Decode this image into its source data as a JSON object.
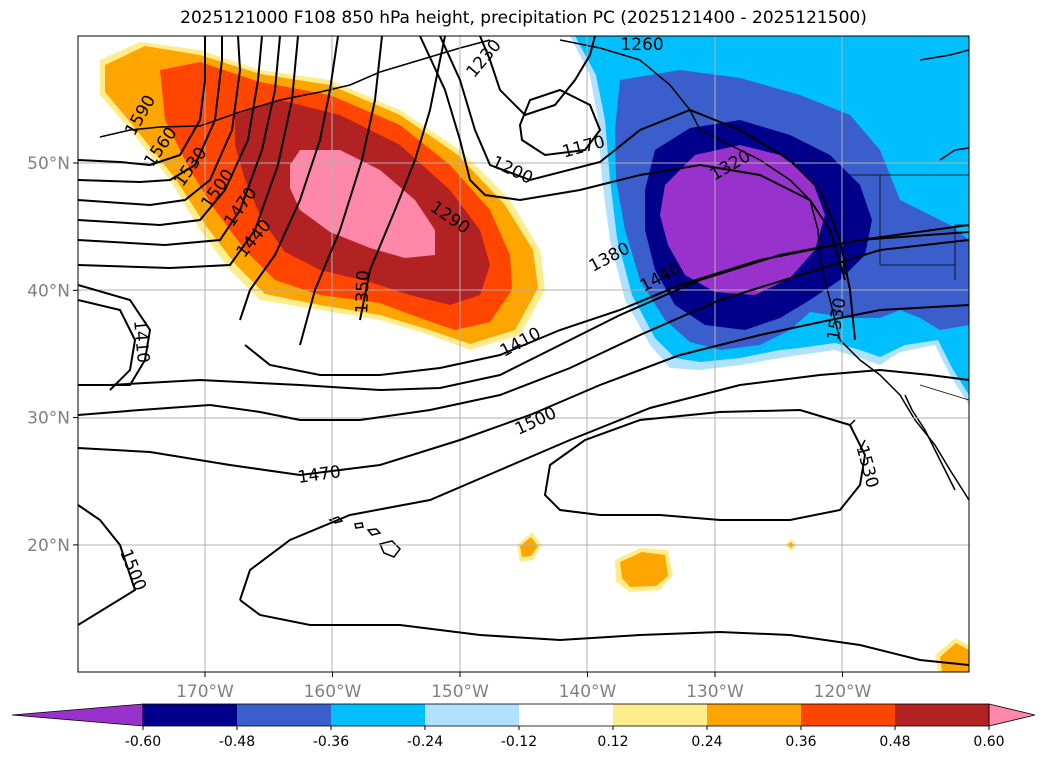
{
  "title": "2025121000 F108 850 hPa height, precipitation PC (2025121400 - 2025121500)",
  "chart_data": {
    "type": "map-contour",
    "variable_contour": "850 hPa height",
    "variable_fill": "precipitation PC",
    "lon_ticks": [
      {
        "lon": -170,
        "label": "170°W"
      },
      {
        "lon": -160,
        "label": "160°W"
      },
      {
        "lon": -150,
        "label": "150°W"
      },
      {
        "lon": -140,
        "label": "140°W"
      },
      {
        "lon": -130,
        "label": "130°W"
      },
      {
        "lon": -120,
        "label": "120°W"
      }
    ],
    "lat_ticks": [
      {
        "lat": 50,
        "label": "50°N"
      },
      {
        "lat": 40,
        "label": "40°N"
      },
      {
        "lat": 30,
        "label": "30°N"
      },
      {
        "lat": 20,
        "label": "20°N"
      }
    ],
    "colorbar": {
      "levels": [
        "-0.60",
        "-0.48",
        "-0.36",
        "-0.24",
        "-0.12",
        "0.12",
        "0.24",
        "0.36",
        "0.48",
        "0.60"
      ],
      "colors": [
        "#9932cc",
        "#00008b",
        "#3a5fcd",
        "#00bfff",
        "#b0e2ff",
        "#ffffff",
        "#ffec8b",
        "#ffa500",
        "#ff4500",
        "#b22222",
        "#ff88aa"
      ]
    },
    "contour_labels": [
      {
        "text": "1590"
      },
      {
        "text": "1560"
      },
      {
        "text": "1530"
      },
      {
        "text": "1500"
      },
      {
        "text": "1470"
      },
      {
        "text": "1440"
      },
      {
        "text": "1230"
      },
      {
        "text": "1200"
      },
      {
        "text": "1170"
      },
      {
        "text": "1290"
      },
      {
        "text": "1350"
      },
      {
        "text": "1380"
      },
      {
        "text": "1440"
      },
      {
        "text": "1410"
      },
      {
        "text": "1320"
      },
      {
        "text": "1530"
      },
      {
        "text": "1410"
      },
      {
        "text": "1500"
      },
      {
        "text": "1470"
      },
      {
        "text": "1530"
      },
      {
        "text": "1500"
      },
      {
        "text": "1260"
      }
    ]
  }
}
